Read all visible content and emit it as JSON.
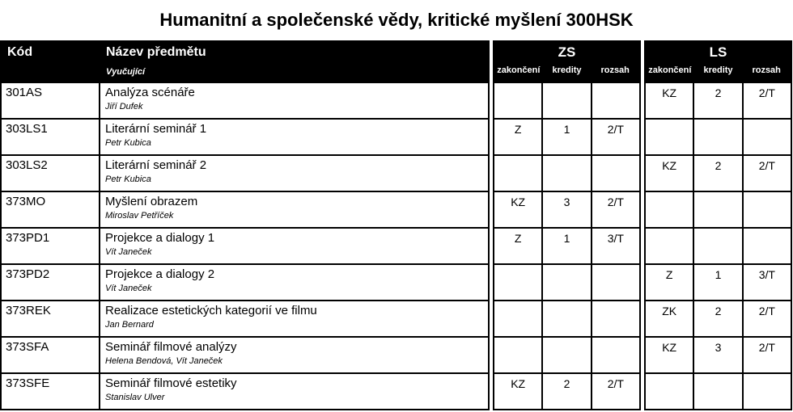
{
  "title": "Humanitní a společenské vědy, kritické myšlení 300HSK",
  "header": {
    "kod": "Kód",
    "nazev": "Název předmětu",
    "vyucujici": "Vyučující",
    "zs": "ZS",
    "ls": "LS",
    "zakonceni": "zakončení",
    "kredity": "kredity",
    "rozsah": "rozsah"
  },
  "rows": [
    {
      "code": "301AS",
      "name": "Analýza scénáře",
      "teacher": "Jiří Dufek",
      "zs": {
        "zakonceni": "",
        "kredity": "",
        "rozsah": ""
      },
      "ls": {
        "zakonceni": "KZ",
        "kredity": "2",
        "rozsah": "2/T"
      }
    },
    {
      "code": "303LS1",
      "name": "Literární seminář 1",
      "teacher": "Petr Kubica",
      "zs": {
        "zakonceni": "Z",
        "kredity": "1",
        "rozsah": "2/T"
      },
      "ls": {
        "zakonceni": "",
        "kredity": "",
        "rozsah": ""
      }
    },
    {
      "code": "303LS2",
      "name": "Literární seminář 2",
      "teacher": "Petr Kubica",
      "zs": {
        "zakonceni": "",
        "kredity": "",
        "rozsah": ""
      },
      "ls": {
        "zakonceni": "KZ",
        "kredity": "2",
        "rozsah": "2/T"
      }
    },
    {
      "code": "373MO",
      "name": "Myšlení obrazem",
      "teacher": "Miroslav Petříček",
      "zs": {
        "zakonceni": "KZ",
        "kredity": "3",
        "rozsah": "2/T"
      },
      "ls": {
        "zakonceni": "",
        "kredity": "",
        "rozsah": ""
      }
    },
    {
      "code": "373PD1",
      "name": "Projekce a dialogy 1",
      "teacher": "Vít Janeček",
      "zs": {
        "zakonceni": "Z",
        "kredity": "1",
        "rozsah": "3/T"
      },
      "ls": {
        "zakonceni": "",
        "kredity": "",
        "rozsah": ""
      }
    },
    {
      "code": "373PD2",
      "name": "Projekce a dialogy 2",
      "teacher": "Vít Janeček",
      "zs": {
        "zakonceni": "",
        "kredity": "",
        "rozsah": ""
      },
      "ls": {
        "zakonceni": "Z",
        "kredity": "1",
        "rozsah": "3/T"
      }
    },
    {
      "code": "373REK",
      "name": "Realizace estetických kategorií ve filmu",
      "teacher": "Jan Bernard",
      "zs": {
        "zakonceni": "",
        "kredity": "",
        "rozsah": ""
      },
      "ls": {
        "zakonceni": "ZK",
        "kredity": "2",
        "rozsah": "2/T"
      }
    },
    {
      "code": "373SFA",
      "name": "Seminář filmové analýzy",
      "teacher": "Helena Bendová, Vít Janeček",
      "zs": {
        "zakonceni": "",
        "kredity": "",
        "rozsah": ""
      },
      "ls": {
        "zakonceni": "KZ",
        "kredity": "3",
        "rozsah": "2/T"
      }
    },
    {
      "code": "373SFE",
      "name": "Seminář filmové estetiky",
      "teacher": "Stanislav Ulver",
      "zs": {
        "zakonceni": "KZ",
        "kredity": "2",
        "rozsah": "2/T"
      },
      "ls": {
        "zakonceni": "",
        "kredity": "",
        "rozsah": ""
      }
    }
  ]
}
